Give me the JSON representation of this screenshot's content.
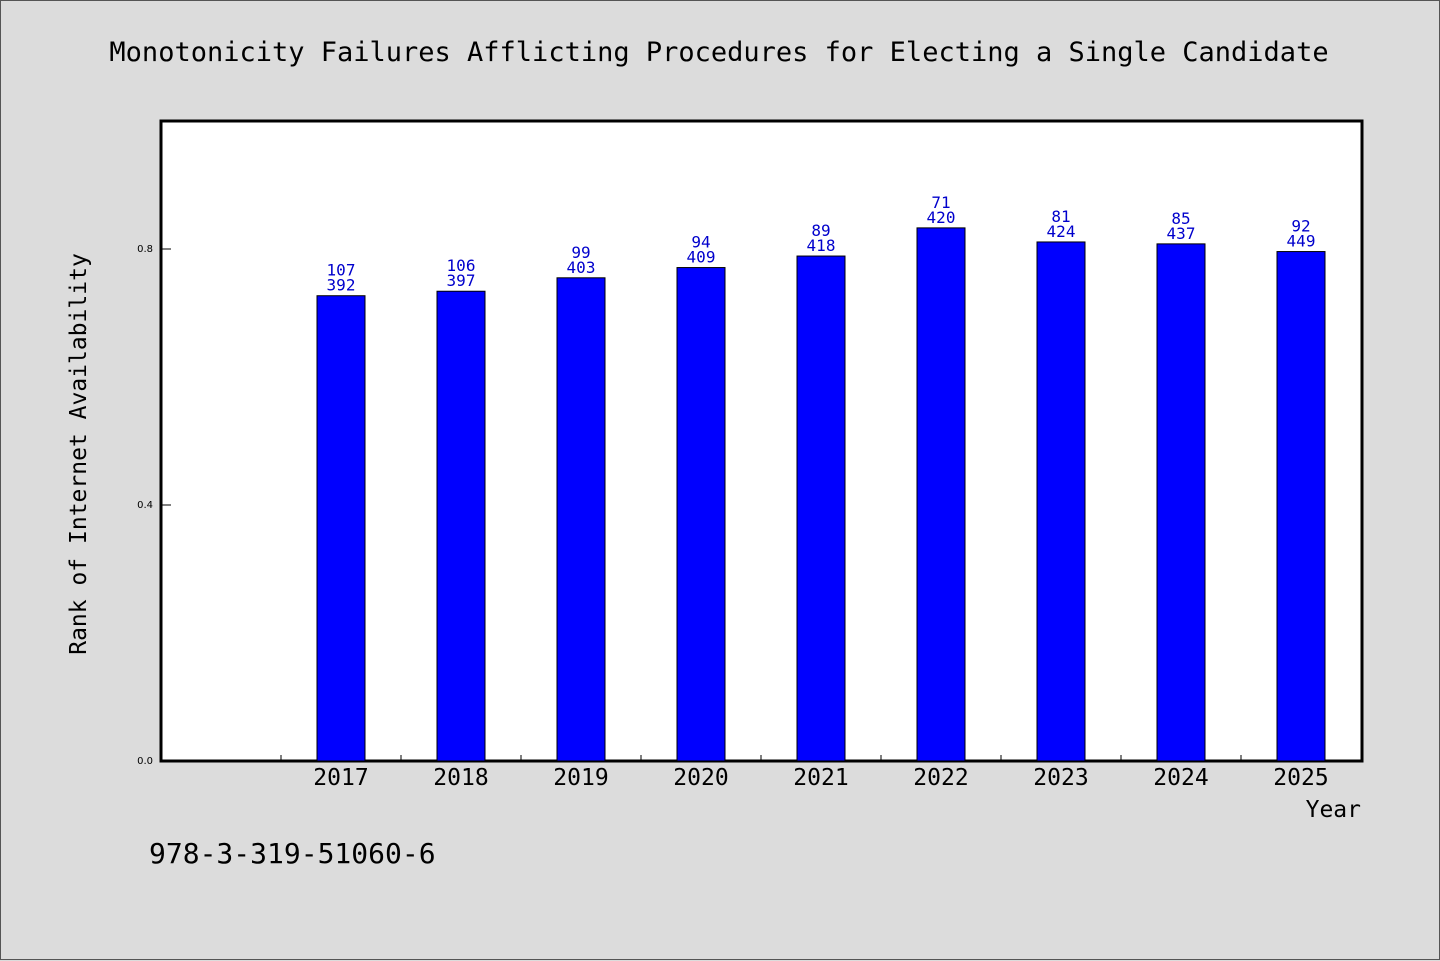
{
  "chart_data": {
    "type": "bar",
    "title": "Monotonicity Failures Afflicting Procedures for Electing a Single Candidate",
    "xlabel": "Year",
    "ylabel": "Rank of Internet Availability",
    "categories": [
      "2017",
      "2018",
      "2019",
      "2020",
      "2021",
      "2022",
      "2023",
      "2024",
      "2025"
    ],
    "values": [
      0.727,
      0.734,
      0.755,
      0.771,
      0.789,
      0.833,
      0.811,
      0.808,
      0.796
    ],
    "top_labels": [
      "107",
      "106",
      "99",
      "94",
      "89",
      "71",
      "81",
      "85",
      "92"
    ],
    "bottom_labels": [
      "392",
      "397",
      "403",
      "409",
      "418",
      "420",
      "424",
      "437",
      "449"
    ],
    "ylim": [
      0,
      1.0
    ],
    "yticks": [
      "0.0",
      "0.4",
      "0.8"
    ],
    "grid": false,
    "legend": "none",
    "colors": {
      "bar": "#0000ff",
      "label": "#0000cc",
      "plot_bg": "#ffffff",
      "page_bg": "#dcdcdc"
    }
  },
  "footer": {
    "isbn": "978-3-319-51060-6"
  }
}
